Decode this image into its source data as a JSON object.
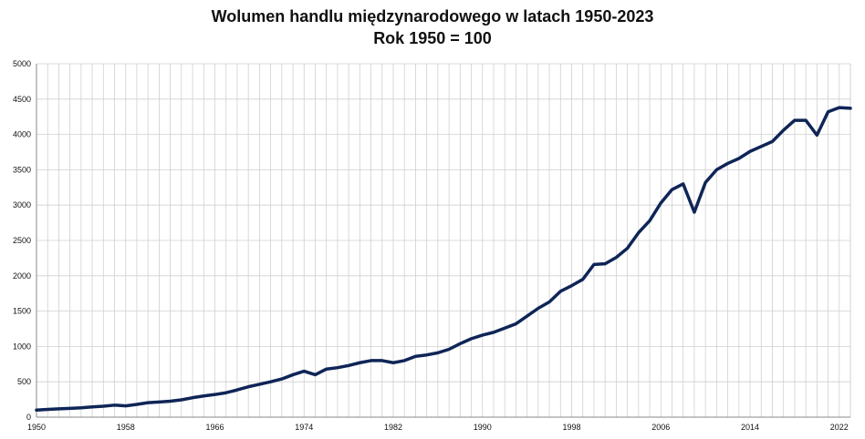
{
  "chart_data": {
    "type": "line",
    "title": "Wolumen handlu międzynarodowego w latach 1950-2023",
    "subtitle": "Rok 1950 = 100",
    "xlabel": "",
    "ylabel": "",
    "xlim": [
      1950,
      2023
    ],
    "ylim": [
      0,
      5000
    ],
    "y_ticks": [
      0,
      500,
      1000,
      1500,
      2000,
      2500,
      3000,
      3500,
      4000,
      4500,
      5000
    ],
    "x_ticks": [
      1950,
      1958,
      1966,
      1974,
      1982,
      1990,
      1998,
      2006,
      2014,
      2022
    ],
    "grid": true,
    "line_color": "#0F2557",
    "series": [
      {
        "x": [
          1950,
          1951,
          1952,
          1953,
          1954,
          1955,
          1956,
          1957,
          1958,
          1959,
          1960,
          1961,
          1962,
          1963,
          1964,
          1965,
          1966,
          1967,
          1968,
          1969,
          1970,
          1971,
          1972,
          1973,
          1974,
          1975,
          1976,
          1977,
          1978,
          1979,
          1980,
          1981,
          1982,
          1983,
          1984,
          1985,
          1986,
          1987,
          1988,
          1989,
          1990,
          1991,
          1992,
          1993,
          1994,
          1995,
          1996,
          1997,
          1998,
          1999,
          2000,
          2001,
          2002,
          2003,
          2004,
          2005,
          2006,
          2007,
          2008,
          2009,
          2010,
          2011,
          2012,
          2013,
          2014,
          2015,
          2016,
          2017,
          2018,
          2019,
          2020,
          2021,
          2022,
          2023
        ],
        "values": [
          100,
          110,
          117,
          124,
          132,
          145,
          155,
          170,
          160,
          180,
          205,
          215,
          225,
          245,
          275,
          300,
          320,
          345,
          385,
          430,
          465,
          500,
          540,
          600,
          650,
          600,
          680,
          700,
          730,
          770,
          800,
          800,
          770,
          800,
          860,
          880,
          910,
          960,
          1040,
          1110,
          1160,
          1200,
          1260,
          1320,
          1430,
          1540,
          1630,
          1780,
          1860,
          1950,
          2160,
          2170,
          2260,
          2390,
          2610,
          2780,
          3030,
          3220,
          3300,
          2900,
          3320,
          3500,
          3590,
          3660,
          3760,
          3830,
          3900,
          4060,
          4200,
          4200,
          3990,
          4320,
          4380,
          4370
        ]
      }
    ]
  }
}
